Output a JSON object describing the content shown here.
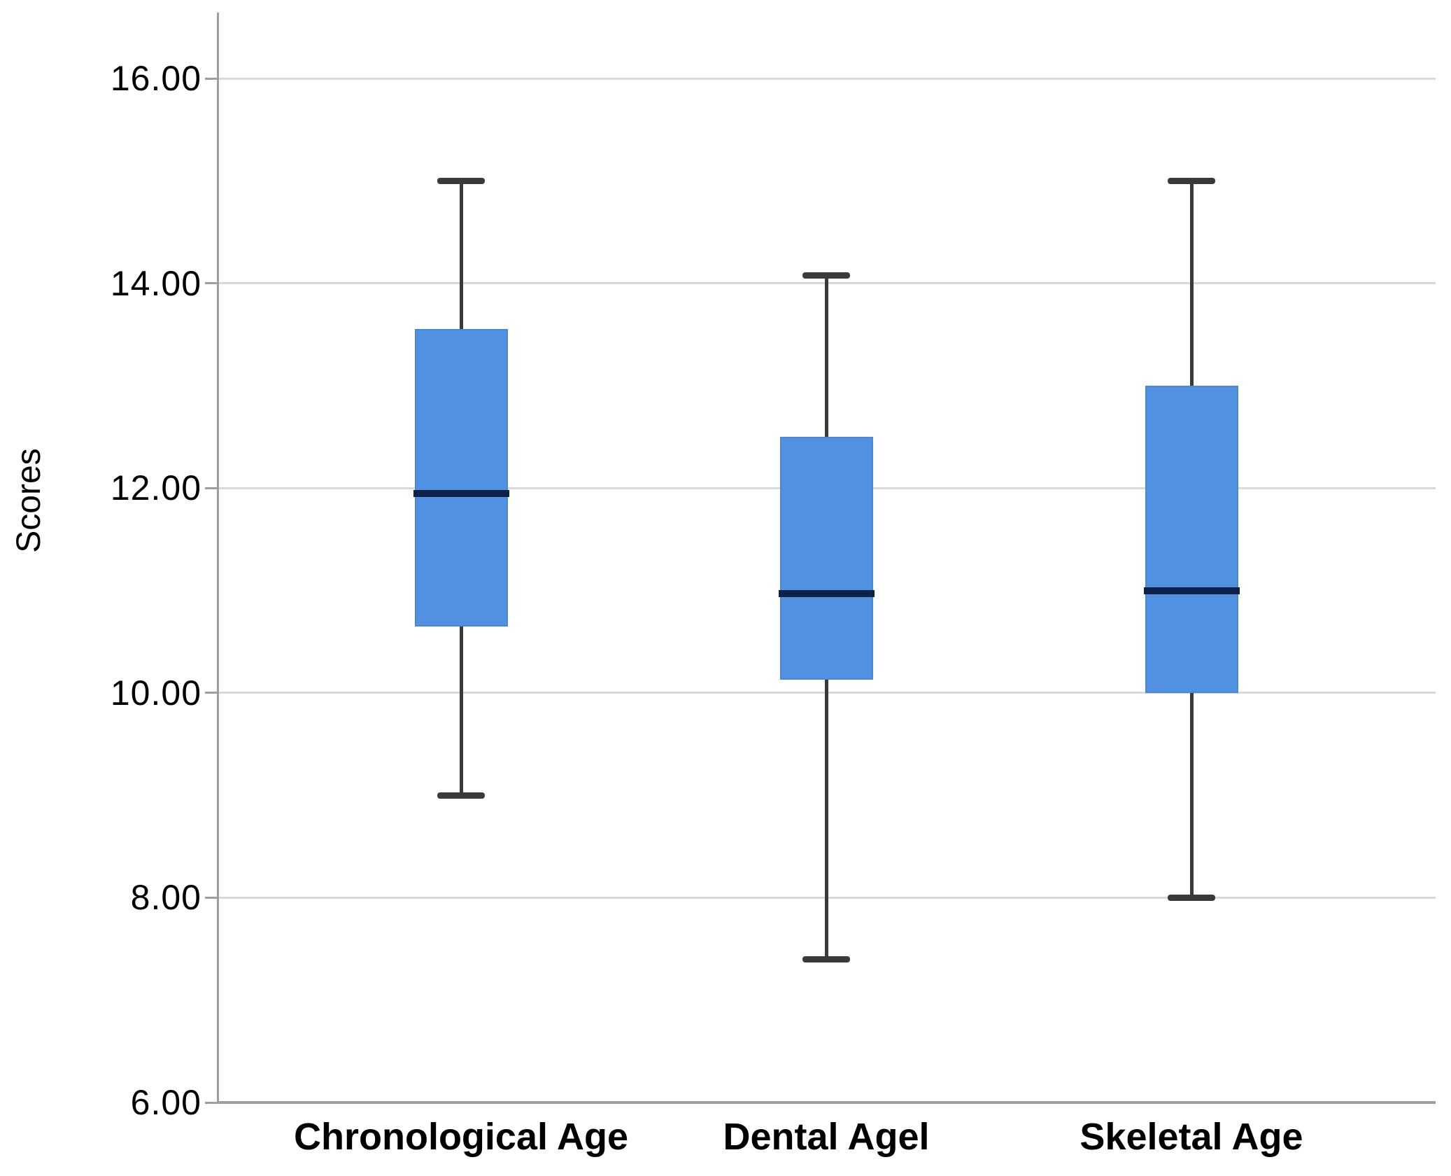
{
  "chart_data": {
    "type": "box",
    "title": "",
    "ylabel": "Scores",
    "xlabel": "",
    "categories": [
      "Chronological Age",
      "Dental Agel",
      "Skeletal Age"
    ],
    "series": [
      {
        "category": "Chronological Age",
        "whisker_low": 9.0,
        "q1": 10.65,
        "median": 11.95,
        "q3": 13.55,
        "whisker_high": 15.0
      },
      {
        "category": "Dental Agel",
        "whisker_low": 7.4,
        "q1": 10.13,
        "median": 10.97,
        "q3": 12.5,
        "whisker_high": 14.08
      },
      {
        "category": "Skeletal Age",
        "whisker_low": 8.0,
        "q1": 10.0,
        "median": 11.0,
        "q3": 13.0,
        "whisker_high": 15.0
      }
    ],
    "ylim": [
      6.0,
      16.64
    ],
    "yticks": [
      6,
      8,
      10,
      12,
      14,
      16
    ],
    "ytick_labels": [
      "6.00",
      "8.00",
      "10.00",
      "12.00",
      "14.00",
      "16.00"
    ],
    "grid": true,
    "legend": "none",
    "colors": {
      "box_fill": "#5191E1",
      "box_border": "#4A87D4",
      "median": "#0E2148",
      "whisker": "#3A3A3A",
      "gridline": "#D9D9D9",
      "axis": "#9E9E9E",
      "text": "#000000",
      "background": "#FFFFFF"
    }
  }
}
